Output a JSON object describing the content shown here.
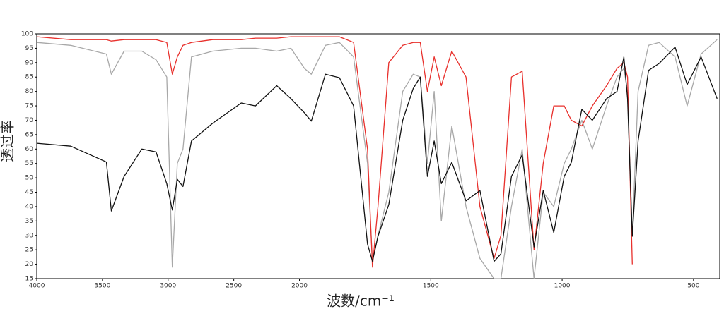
{
  "chart_data": {
    "type": "line",
    "xlabel": "波数/cm⁻¹",
    "ylabel": "透过率",
    "xlim": [
      4000,
      400
    ],
    "xbreak": {
      "at": 2000,
      "factor": 2
    },
    "xticks": [
      4000,
      3500,
      3000,
      2500,
      2000,
      1500,
      1000,
      500
    ],
    "ylim": [
      15,
      100
    ],
    "yticks": [
      15,
      20,
      25,
      30,
      35,
      40,
      45,
      50,
      55,
      60,
      65,
      70,
      75,
      80,
      85,
      90,
      95,
      100
    ],
    "x": [
      4000,
      3741,
      3470,
      3432,
      3335,
      3200,
      3092,
      3010,
      2968,
      2930,
      2887,
      2822,
      2660,
      2443,
      2335,
      2173,
      2065,
      1981,
      1955,
      1901,
      1848,
      1794,
      1741,
      1722,
      1701,
      1660,
      1607,
      1567,
      1540,
      1513,
      1487,
      1460,
      1420,
      1366,
      1313,
      1259,
      1233,
      1193,
      1152,
      1107,
      1072,
      1032,
      992,
      965,
      925,
      885,
      831,
      791,
      765,
      751,
      733,
      711,
      671,
      631,
      570,
      524,
      471,
      410
    ],
    "series": [
      {
        "name": "gray",
        "color": "#a8a8a8",
        "values": [
          97,
          96,
          93,
          86,
          94,
          94,
          91,
          85,
          19,
          55,
          60,
          92,
          94,
          95,
          95,
          94,
          95,
          88,
          86,
          96,
          97,
          92,
          55,
          21,
          30,
          45,
          80,
          86,
          85,
          55,
          80,
          35,
          68,
          40,
          22,
          15,
          15,
          40,
          60,
          15,
          45,
          40,
          55,
          60,
          70,
          60,
          75,
          85,
          88,
          80,
          30,
          80,
          96,
          97,
          92,
          75,
          93,
          98
        ]
      },
      {
        "name": "red",
        "color": "#e8302c",
        "values": [
          99,
          98,
          98,
          97.5,
          98,
          98,
          98,
          97,
          86,
          92,
          96,
          97,
          98,
          98,
          98.5,
          98.5,
          99,
          99,
          99,
          99,
          99,
          97,
          60,
          19,
          40,
          90,
          96,
          97,
          97,
          80,
          92,
          82,
          94,
          85,
          40,
          22,
          30,
          85,
          87,
          25,
          55,
          75,
          75,
          70,
          68,
          75,
          82,
          88,
          90,
          85,
          20,
          null,
          null,
          null,
          null,
          null,
          null,
          null
        ]
      },
      {
        "name": "black",
        "color": "#111111",
        "values": [
          62,
          61,
          55.5,
          38.5,
          50.5,
          60,
          59,
          48,
          38.8,
          49.5,
          47,
          62.8,
          69,
          76,
          75,
          82,
          77.5,
          72.6,
          69.7,
          86,
          84.8,
          75,
          27,
          21,
          29.7,
          40.7,
          70,
          81,
          85,
          50.5,
          62.8,
          48,
          55.4,
          42,
          45.6,
          21,
          23.6,
          50.5,
          58,
          26,
          45.6,
          31,
          50.5,
          55.4,
          73.8,
          70,
          77.5,
          80,
          92,
          77.5,
          29.7,
          62.8,
          87.3,
          89.7,
          95.4,
          82.4,
          92,
          77.5
        ]
      }
    ]
  }
}
